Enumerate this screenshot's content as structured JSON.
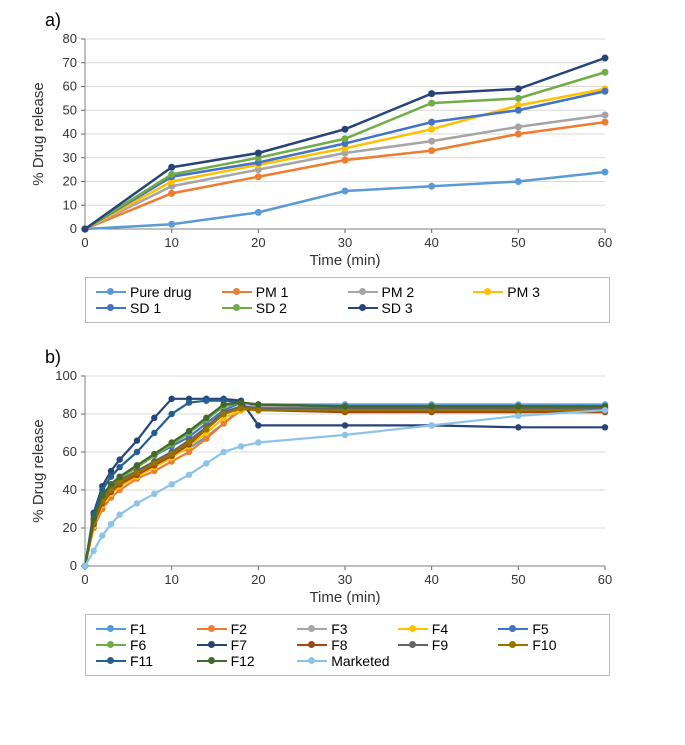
{
  "panel_a": {
    "label": "a)",
    "type": "line",
    "xlabel": "Time (min)",
    "ylabel": "% Drug release",
    "xlim": [
      0,
      60
    ],
    "xtick_step": 10,
    "ylim": [
      0,
      80
    ],
    "ytick_step": 10,
    "grid_color": "#d9d9d9",
    "background_color": "#ffffff",
    "line_width": 2.5,
    "marker_radius": 3.5,
    "label_fontsize": 15,
    "tick_fontsize": 13,
    "series": [
      {
        "name": "Pure drug",
        "color": "#5b9bd5",
        "x": [
          0,
          10,
          20,
          30,
          40,
          50,
          60
        ],
        "y": [
          0,
          2,
          7,
          16,
          18,
          20,
          24
        ]
      },
      {
        "name": "PM 1",
        "color": "#ed7d31",
        "x": [
          0,
          10,
          20,
          30,
          40,
          50,
          60
        ],
        "y": [
          0,
          15,
          22,
          29,
          33,
          40,
          45
        ]
      },
      {
        "name": "PM 2",
        "color": "#a5a5a5",
        "x": [
          0,
          10,
          20,
          30,
          40,
          50,
          60
        ],
        "y": [
          0,
          18,
          25,
          32,
          37,
          43,
          48
        ]
      },
      {
        "name": "PM 3",
        "color": "#ffc000",
        "x": [
          0,
          10,
          20,
          30,
          40,
          50,
          60
        ],
        "y": [
          0,
          20,
          27,
          34,
          42,
          52,
          59
        ]
      },
      {
        "name": "SD 1",
        "color": "#4472c4",
        "x": [
          0,
          10,
          20,
          30,
          40,
          50,
          60
        ],
        "y": [
          0,
          22,
          28,
          36,
          45,
          50,
          58
        ]
      },
      {
        "name": "SD 2",
        "color": "#70ad47",
        "x": [
          0,
          10,
          20,
          30,
          40,
          50,
          60
        ],
        "y": [
          0,
          23,
          30,
          38,
          53,
          55,
          66
        ]
      },
      {
        "name": "SD 3",
        "color": "#264478",
        "x": [
          0,
          10,
          20,
          30,
          40,
          50,
          60
        ],
        "y": [
          0,
          26,
          32,
          42,
          57,
          59,
          72
        ]
      }
    ],
    "legend_cols": 4
  },
  "panel_b": {
    "label": "b)",
    "type": "line",
    "xlabel": "Time (min)",
    "ylabel": "% Drug release",
    "xlim": [
      0,
      60
    ],
    "xtick_step": 10,
    "ylim": [
      0,
      100
    ],
    "ytick_step": 20,
    "grid_color": "#d9d9d9",
    "background_color": "#ffffff",
    "line_width": 2.2,
    "marker_radius": 3.2,
    "label_fontsize": 15,
    "tick_fontsize": 13,
    "series": [
      {
        "name": "F1",
        "color": "#5b9bd5",
        "x": [
          0,
          1,
          2,
          3,
          4,
          6,
          8,
          10,
          12,
          14,
          16,
          18,
          20,
          30,
          40,
          50,
          60
        ],
        "y": [
          0,
          22,
          34,
          40,
          44,
          49,
          53,
          58,
          62,
          68,
          75,
          83,
          85,
          85,
          85,
          85,
          85
        ]
      },
      {
        "name": "F2",
        "color": "#ed7d31",
        "x": [
          0,
          1,
          2,
          3,
          4,
          6,
          8,
          10,
          12,
          14,
          16,
          18,
          20,
          30,
          40,
          50,
          60
        ],
        "y": [
          0,
          20,
          30,
          36,
          40,
          46,
          50,
          55,
          60,
          67,
          75,
          82,
          83,
          83,
          83,
          83,
          83
        ]
      },
      {
        "name": "F3",
        "color": "#a5a5a5",
        "x": [
          0,
          1,
          2,
          3,
          4,
          6,
          8,
          10,
          12,
          14,
          16,
          18,
          20,
          30,
          40,
          50,
          60
        ],
        "y": [
          0,
          23,
          35,
          41,
          45,
          50,
          55,
          60,
          66,
          73,
          80,
          84,
          84,
          84,
          84,
          84,
          84
        ]
      },
      {
        "name": "F4",
        "color": "#ffc000",
        "x": [
          0,
          1,
          2,
          3,
          4,
          6,
          8,
          10,
          12,
          14,
          16,
          18,
          20,
          30,
          40,
          50,
          60
        ],
        "y": [
          0,
          21,
          32,
          38,
          42,
          47,
          52,
          57,
          63,
          70,
          78,
          82,
          82,
          82,
          82,
          82,
          82
        ]
      },
      {
        "name": "F5",
        "color": "#4472c4",
        "x": [
          0,
          1,
          2,
          3,
          4,
          6,
          8,
          10,
          12,
          14,
          16,
          18,
          20,
          30,
          40,
          50,
          60
        ],
        "y": [
          0,
          25,
          37,
          43,
          47,
          53,
          58,
          63,
          68,
          75,
          82,
          86,
          85,
          84,
          84,
          84,
          84
        ]
      },
      {
        "name": "F6",
        "color": "#70ad47",
        "x": [
          0,
          1,
          2,
          3,
          4,
          6,
          8,
          10,
          12,
          14,
          16,
          18,
          20,
          30,
          40,
          50,
          60
        ],
        "y": [
          0,
          24,
          36,
          42,
          46,
          52,
          58,
          64,
          70,
          77,
          84,
          86,
          85,
          84,
          84,
          84,
          84
        ]
      },
      {
        "name": "F7",
        "color": "#264478",
        "x": [
          0,
          1,
          2,
          3,
          4,
          6,
          8,
          10,
          12,
          14,
          16,
          18,
          20,
          30,
          40,
          50,
          60
        ],
        "y": [
          0,
          28,
          42,
          50,
          56,
          66,
          78,
          88,
          88,
          88,
          88,
          87,
          74,
          74,
          74,
          73,
          73
        ]
      },
      {
        "name": "F8",
        "color": "#9e480e",
        "x": [
          0,
          1,
          2,
          3,
          4,
          6,
          8,
          10,
          12,
          14,
          16,
          18,
          20,
          30,
          40,
          50,
          60
        ],
        "y": [
          0,
          22,
          33,
          39,
          43,
          48,
          53,
          58,
          64,
          72,
          80,
          83,
          82,
          81,
          81,
          81,
          81
        ]
      },
      {
        "name": "F9",
        "color": "#636363",
        "x": [
          0,
          1,
          2,
          3,
          4,
          6,
          8,
          10,
          12,
          14,
          16,
          18,
          20,
          30,
          40,
          50,
          60
        ],
        "y": [
          0,
          24,
          35,
          41,
          45,
          50,
          55,
          60,
          66,
          73,
          81,
          84,
          83,
          83,
          83,
          83,
          83
        ]
      },
      {
        "name": "F10",
        "color": "#997300",
        "x": [
          0,
          1,
          2,
          3,
          4,
          6,
          8,
          10,
          12,
          14,
          16,
          18,
          20,
          30,
          40,
          50,
          60
        ],
        "y": [
          0,
          23,
          34,
          40,
          44,
          49,
          54,
          59,
          65,
          72,
          80,
          83,
          82,
          82,
          82,
          82,
          82
        ]
      },
      {
        "name": "F11",
        "color": "#255e91",
        "x": [
          0,
          1,
          2,
          3,
          4,
          6,
          8,
          10,
          12,
          14,
          16,
          18,
          20,
          30,
          40,
          50,
          60
        ],
        "y": [
          0,
          27,
          40,
          47,
          52,
          60,
          70,
          80,
          86,
          87,
          87,
          86,
          85,
          84,
          84,
          84,
          84
        ]
      },
      {
        "name": "F12",
        "color": "#43682b",
        "x": [
          0,
          1,
          2,
          3,
          4,
          6,
          8,
          10,
          12,
          14,
          16,
          18,
          20,
          30,
          40,
          50,
          60
        ],
        "y": [
          0,
          25,
          37,
          43,
          47,
          53,
          59,
          65,
          71,
          78,
          85,
          86,
          85,
          84,
          84,
          84,
          84
        ]
      },
      {
        "name": "Marketed",
        "color": "#8dc3e9",
        "x": [
          0,
          1,
          2,
          3,
          4,
          6,
          8,
          10,
          12,
          14,
          16,
          18,
          20,
          30,
          40,
          50,
          60
        ],
        "y": [
          0,
          8,
          16,
          22,
          27,
          33,
          38,
          43,
          48,
          54,
          60,
          63,
          65,
          69,
          74,
          79,
          82
        ]
      }
    ],
    "legend_cols": 5
  }
}
